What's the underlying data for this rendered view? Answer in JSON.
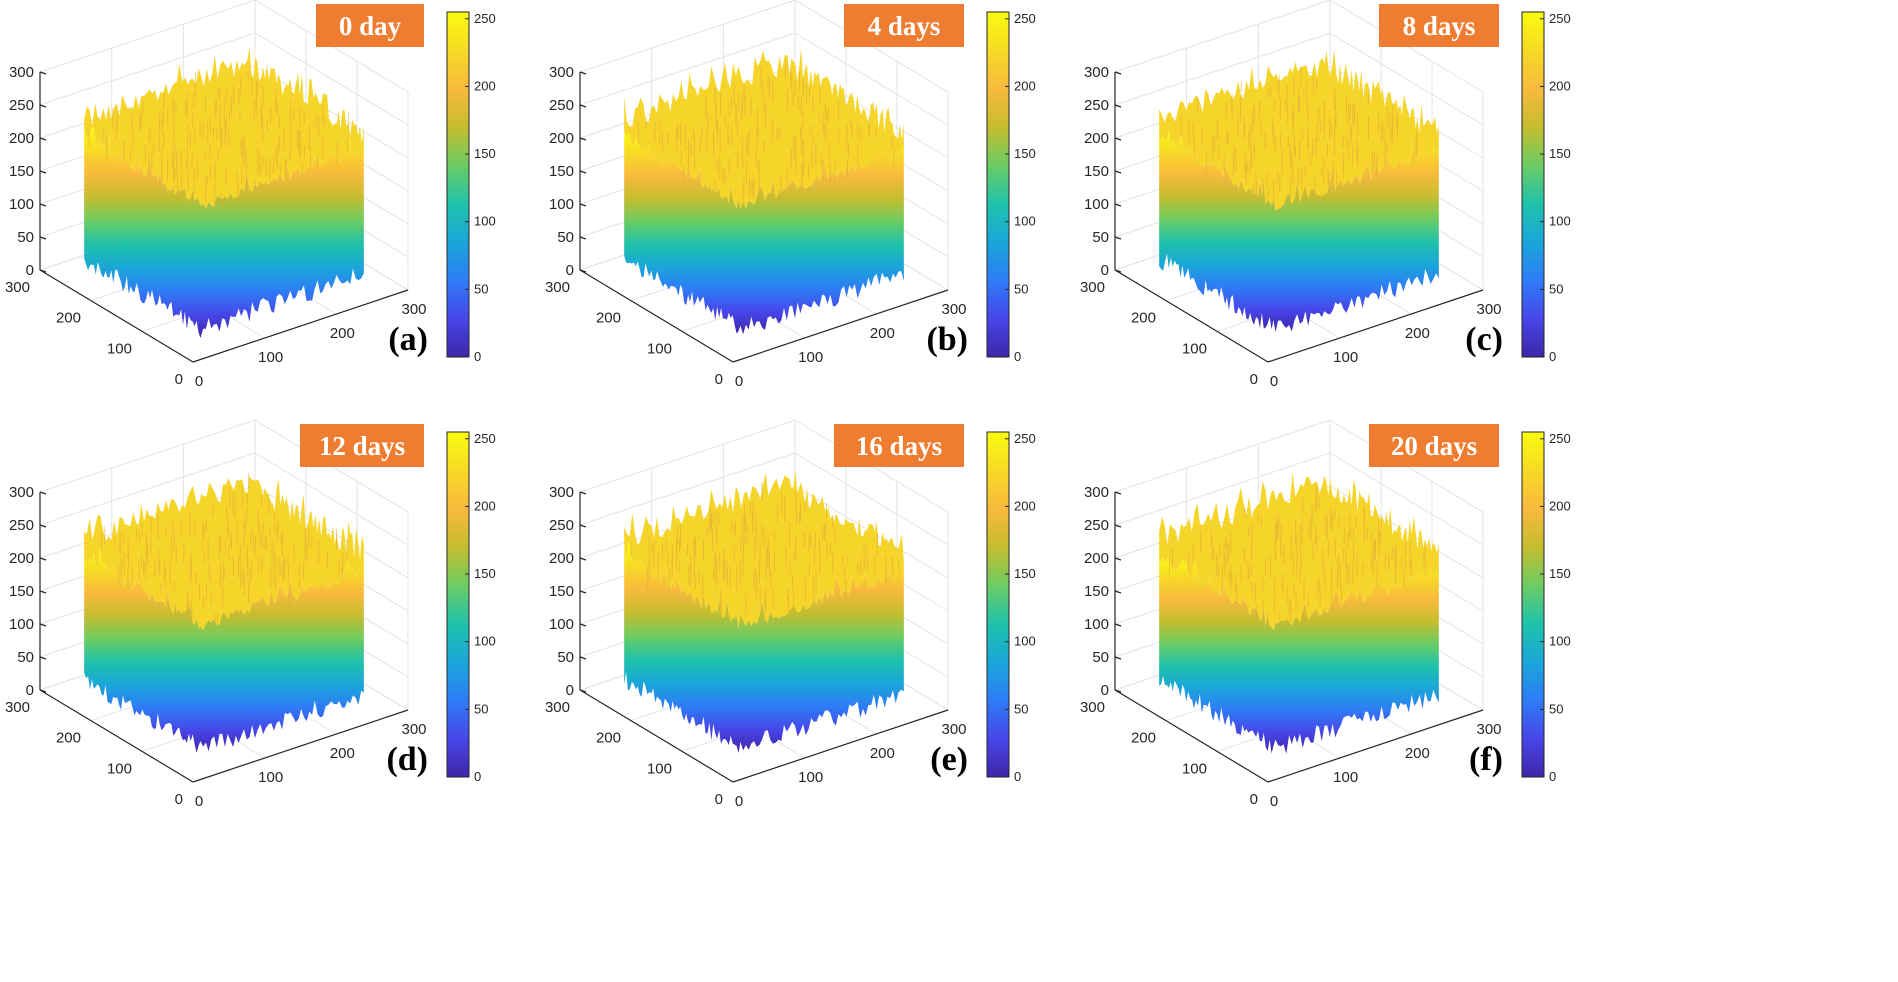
{
  "colors": {
    "badge": "#ee7d32",
    "axis": "#262626",
    "grid": "#e3e3e3",
    "colormap": [
      "#3e26a8",
      "#4746e9",
      "#2e7cf6",
      "#1aa6d9",
      "#1fc2aa",
      "#6ccc63",
      "#c5bd2e",
      "#f8ba3d",
      "#f7da26",
      "#f9fb0e"
    ]
  },
  "chart_data": [
    {
      "type": "surface3d",
      "panel": "(a)",
      "badge": "0 day",
      "x_ticks": [
        "0",
        "100",
        "200",
        "300"
      ],
      "y_ticks": [
        "0",
        "100",
        "200",
        "300"
      ],
      "z_ticks": [
        "0",
        "50",
        "100",
        "150",
        "200",
        "250",
        "300"
      ],
      "xlim": [
        0,
        300
      ],
      "ylim": [
        0,
        300
      ],
      "zlim": [
        0,
        300
      ],
      "colorbar": {
        "range": [
          0,
          255
        ],
        "ticks": [
          "0",
          "50",
          "100",
          "150",
          "200",
          "250"
        ]
      }
    },
    {
      "type": "surface3d",
      "panel": "(b)",
      "badge": "4 days",
      "x_ticks": [
        "0",
        "100",
        "200",
        "300"
      ],
      "y_ticks": [
        "0",
        "100",
        "200",
        "300"
      ],
      "z_ticks": [
        "0",
        "50",
        "100",
        "150",
        "200",
        "250",
        "300"
      ],
      "xlim": [
        0,
        300
      ],
      "ylim": [
        0,
        300
      ],
      "zlim": [
        0,
        300
      ],
      "colorbar": {
        "range": [
          0,
          255
        ],
        "ticks": [
          "0",
          "50",
          "100",
          "150",
          "200",
          "250"
        ]
      }
    },
    {
      "type": "surface3d",
      "panel": "(c)",
      "badge": "8 days",
      "x_ticks": [
        "0",
        "100",
        "200",
        "300"
      ],
      "y_ticks": [
        "0",
        "100",
        "200",
        "300"
      ],
      "z_ticks": [
        "0",
        "50",
        "100",
        "150",
        "200",
        "250",
        "300"
      ],
      "xlim": [
        0,
        300
      ],
      "ylim": [
        0,
        300
      ],
      "zlim": [
        0,
        300
      ],
      "colorbar": {
        "range": [
          0,
          255
        ],
        "ticks": [
          "0",
          "50",
          "100",
          "150",
          "200",
          "250"
        ]
      }
    },
    {
      "type": "surface3d",
      "panel": "(d)",
      "badge": "12 days",
      "x_ticks": [
        "0",
        "100",
        "200",
        "300"
      ],
      "y_ticks": [
        "0",
        "100",
        "200",
        "300"
      ],
      "z_ticks": [
        "0",
        "50",
        "100",
        "150",
        "200",
        "250",
        "300"
      ],
      "xlim": [
        0,
        300
      ],
      "ylim": [
        0,
        300
      ],
      "zlim": [
        0,
        300
      ],
      "colorbar": {
        "range": [
          0,
          255
        ],
        "ticks": [
          "0",
          "50",
          "100",
          "150",
          "200",
          "250"
        ]
      }
    },
    {
      "type": "surface3d",
      "panel": "(e)",
      "badge": "16 days",
      "x_ticks": [
        "0",
        "100",
        "200",
        "300"
      ],
      "y_ticks": [
        "0",
        "100",
        "200",
        "300"
      ],
      "z_ticks": [
        "0",
        "50",
        "100",
        "150",
        "200",
        "250",
        "300"
      ],
      "xlim": [
        0,
        300
      ],
      "ylim": [
        0,
        300
      ],
      "zlim": [
        0,
        300
      ],
      "colorbar": {
        "range": [
          0,
          255
        ],
        "ticks": [
          "0",
          "50",
          "100",
          "150",
          "200",
          "250"
        ]
      }
    },
    {
      "type": "surface3d",
      "panel": "(f)",
      "badge": "20 days",
      "x_ticks": [
        "0",
        "100",
        "200",
        "300"
      ],
      "y_ticks": [
        "0",
        "100",
        "200",
        "300"
      ],
      "z_ticks": [
        "0",
        "50",
        "100",
        "150",
        "200",
        "250",
        "300"
      ],
      "xlim": [
        0,
        300
      ],
      "ylim": [
        0,
        300
      ],
      "zlim": [
        0,
        300
      ],
      "colorbar": {
        "range": [
          0,
          255
        ],
        "ticks": [
          "0",
          "50",
          "100",
          "150",
          "200",
          "250"
        ]
      }
    }
  ]
}
